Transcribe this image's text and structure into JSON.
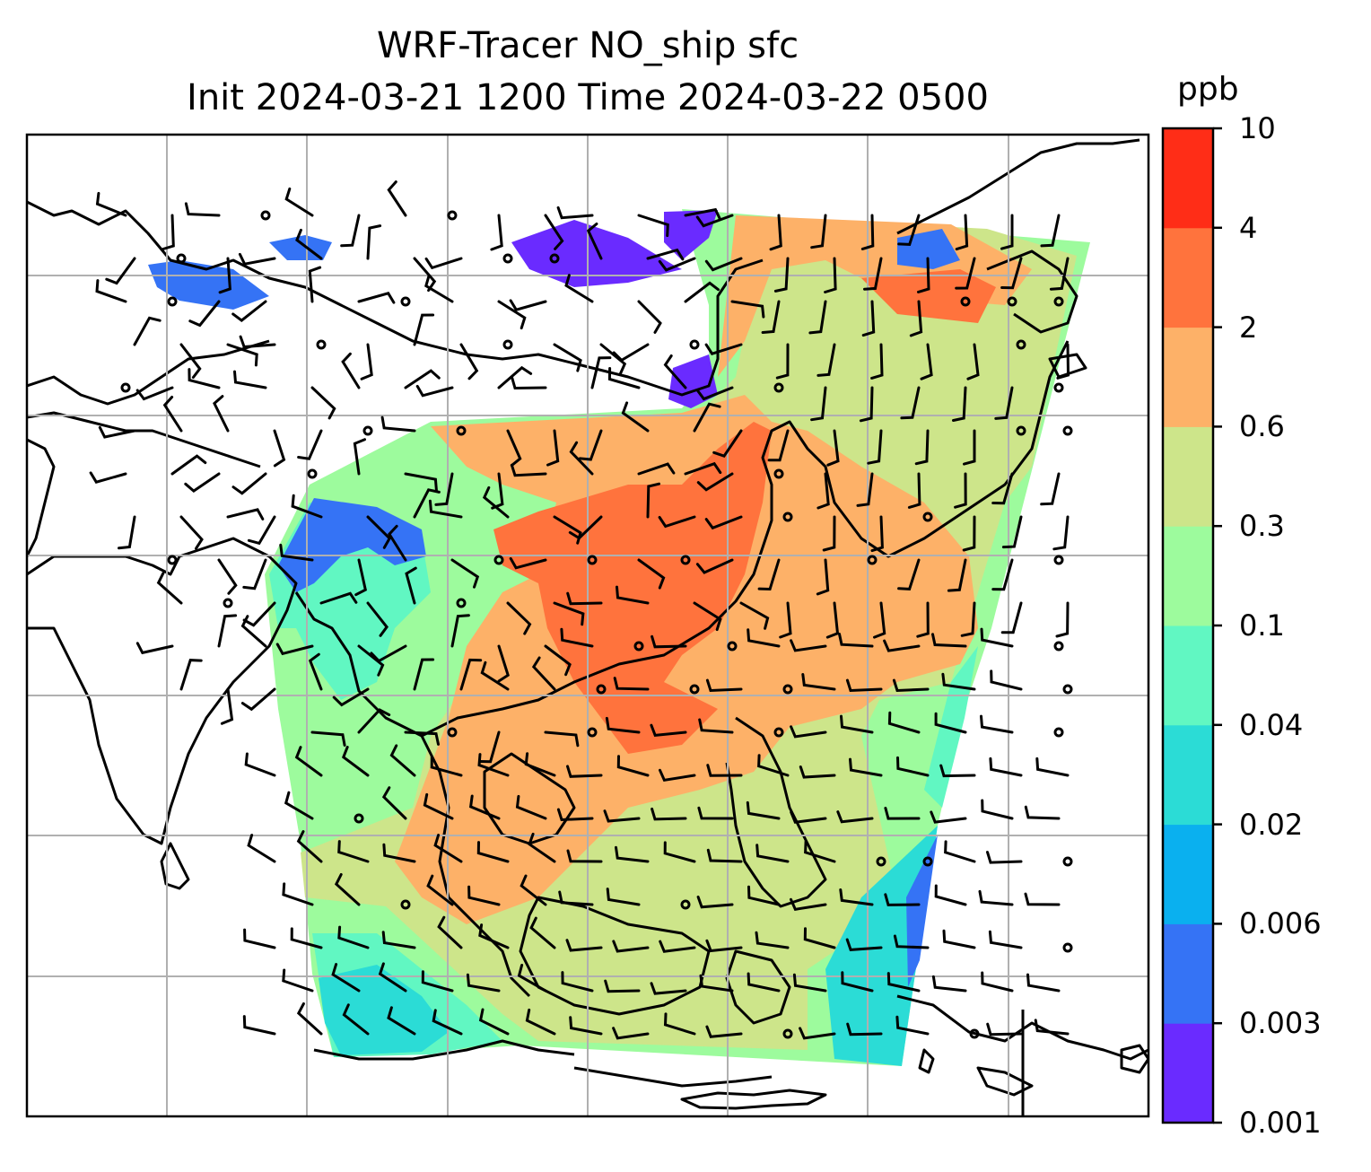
{
  "title": {
    "line1": "WRF-Tracer NO_ship sfc",
    "line2": "Init 2024-03-21 1200 Time 2024-03-22 0500"
  },
  "colorbar": {
    "unit": "ppb",
    "levels": [
      "0.001",
      "0.003",
      "0.006",
      "0.02",
      "0.04",
      "0.1",
      "0.3",
      "0.6",
      "2",
      "4",
      "10"
    ],
    "colors": [
      "#6a2bff",
      "#3573f5",
      "#0ab0ef",
      "#2bdcd6",
      "#61f7c2",
      "#9dfb9d",
      "#cde58a",
      "#fdb168",
      "#ff733d",
      "#ff2d17"
    ]
  },
  "map": {
    "grid": true,
    "field_name": "NO_ship",
    "level": "sfc",
    "palette": {
      "coastline": "#000000",
      "gridline": "#b0b0b0",
      "barb": "#000000"
    }
  }
}
